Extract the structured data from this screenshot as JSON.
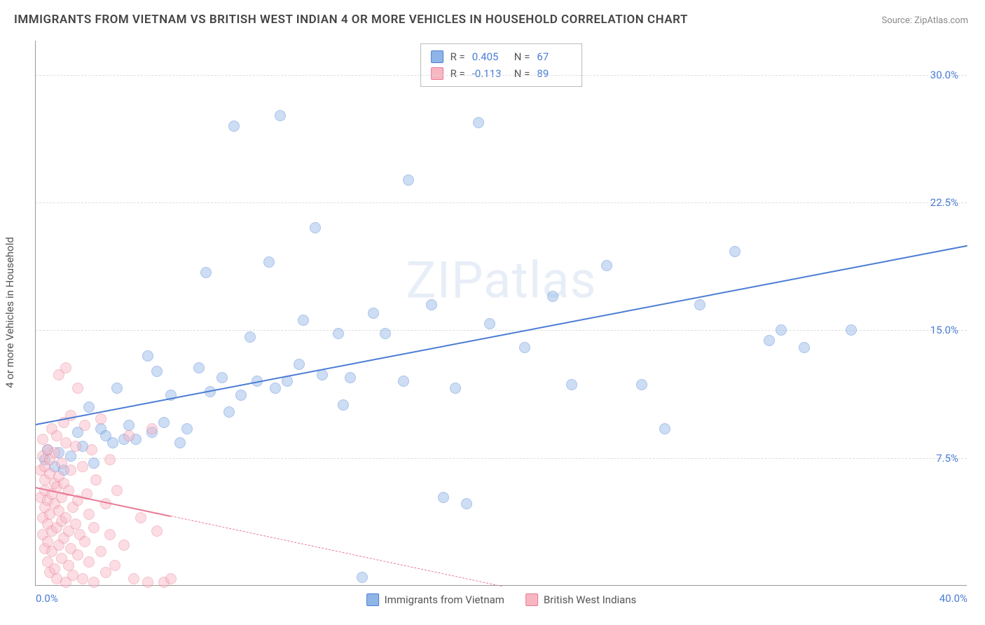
{
  "title": "IMMIGRANTS FROM VIETNAM VS BRITISH WEST INDIAN 4 OR MORE VEHICLES IN HOUSEHOLD CORRELATION CHART",
  "source": "Source: ZipAtlas.com",
  "watermark": "ZIPatlas",
  "y_axis_title": "4 or more Vehicles in Household",
  "chart": {
    "type": "scatter",
    "xlim": [
      0,
      40
    ],
    "ylim": [
      0,
      32
    ],
    "x_ticks": [
      {
        "v": 0,
        "label": "0.0%"
      },
      {
        "v": 40,
        "label": "40.0%"
      }
    ],
    "y_ticks": [
      {
        "v": 7.5,
        "label": "7.5%"
      },
      {
        "v": 15.0,
        "label": "15.0%"
      },
      {
        "v": 22.5,
        "label": "22.5%"
      },
      {
        "v": 30.0,
        "label": "30.0%"
      }
    ],
    "background_color": "#ffffff",
    "grid_color": "#dddddd",
    "marker_radius": 8,
    "marker_opacity": 0.45,
    "series": [
      {
        "key": "vietnam",
        "label": "Immigrants from Vietnam",
        "color_fill": "#8fb5e8",
        "color_stroke": "#4a7cd4",
        "r_value": "0.405",
        "n_value": "67",
        "trend": {
          "x1": 0,
          "y1": 9.5,
          "x2": 40,
          "y2": 20.0,
          "solid_until_x": 40,
          "width": 2.5
        },
        "points": [
          [
            0.4,
            7.4
          ],
          [
            0.5,
            8.0
          ],
          [
            0.8,
            7.0
          ],
          [
            1.0,
            7.8
          ],
          [
            1.2,
            6.8
          ],
          [
            1.5,
            7.6
          ],
          [
            1.8,
            9.0
          ],
          [
            2.0,
            8.2
          ],
          [
            2.3,
            10.5
          ],
          [
            2.5,
            7.2
          ],
          [
            2.8,
            9.2
          ],
          [
            3.0,
            8.8
          ],
          [
            3.3,
            8.4
          ],
          [
            3.5,
            11.6
          ],
          [
            3.8,
            8.6
          ],
          [
            4.0,
            9.4
          ],
          [
            4.3,
            8.6
          ],
          [
            4.8,
            13.5
          ],
          [
            5.0,
            9.0
          ],
          [
            5.2,
            12.6
          ],
          [
            5.5,
            9.6
          ],
          [
            5.8,
            11.2
          ],
          [
            6.2,
            8.4
          ],
          [
            6.5,
            9.2
          ],
          [
            7.0,
            12.8
          ],
          [
            7.3,
            18.4
          ],
          [
            7.5,
            11.4
          ],
          [
            8.0,
            12.2
          ],
          [
            8.3,
            10.2
          ],
          [
            8.5,
            27.0
          ],
          [
            8.8,
            11.2
          ],
          [
            9.2,
            14.6
          ],
          [
            9.5,
            12.0
          ],
          [
            10.0,
            19.0
          ],
          [
            10.3,
            11.6
          ],
          [
            10.5,
            27.6
          ],
          [
            10.8,
            12.0
          ],
          [
            11.3,
            13.0
          ],
          [
            11.5,
            15.6
          ],
          [
            12.0,
            21.0
          ],
          [
            12.3,
            12.4
          ],
          [
            13.0,
            14.8
          ],
          [
            13.2,
            10.6
          ],
          [
            13.5,
            12.2
          ],
          [
            14.0,
            0.5
          ],
          [
            14.5,
            16.0
          ],
          [
            15.0,
            14.8
          ],
          [
            15.8,
            12.0
          ],
          [
            16.0,
            23.8
          ],
          [
            17.0,
            16.5
          ],
          [
            17.5,
            5.2
          ],
          [
            18.0,
            11.6
          ],
          [
            18.5,
            4.8
          ],
          [
            19.0,
            27.2
          ],
          [
            19.5,
            15.4
          ],
          [
            21.0,
            14.0
          ],
          [
            22.2,
            17.0
          ],
          [
            23.0,
            11.8
          ],
          [
            24.5,
            18.8
          ],
          [
            26.0,
            11.8
          ],
          [
            27.0,
            9.2
          ],
          [
            28.5,
            16.5
          ],
          [
            30.0,
            19.6
          ],
          [
            31.5,
            14.4
          ],
          [
            32.0,
            15.0
          ],
          [
            33.0,
            14.0
          ],
          [
            35.0,
            15.0
          ]
        ]
      },
      {
        "key": "bwi",
        "label": "British West Indians",
        "color_fill": "#f7b6c2",
        "color_stroke": "#e87a94",
        "r_value": "-0.113",
        "n_value": "89",
        "trend": {
          "x1": 0,
          "y1": 5.8,
          "x2": 20,
          "y2": 0,
          "solid_until_x": 5.8,
          "width": 2
        },
        "points": [
          [
            0.2,
            5.2
          ],
          [
            0.2,
            6.8
          ],
          [
            0.3,
            4.0
          ],
          [
            0.3,
            7.6
          ],
          [
            0.3,
            3.0
          ],
          [
            0.3,
            8.6
          ],
          [
            0.4,
            2.2
          ],
          [
            0.4,
            5.6
          ],
          [
            0.4,
            7.0
          ],
          [
            0.4,
            4.6
          ],
          [
            0.4,
            6.2
          ],
          [
            0.5,
            1.4
          ],
          [
            0.5,
            3.6
          ],
          [
            0.5,
            5.0
          ],
          [
            0.5,
            8.0
          ],
          [
            0.5,
            2.6
          ],
          [
            0.6,
            6.6
          ],
          [
            0.6,
            4.2
          ],
          [
            0.6,
            7.4
          ],
          [
            0.6,
            0.8
          ],
          [
            0.7,
            3.2
          ],
          [
            0.7,
            5.4
          ],
          [
            0.7,
            9.2
          ],
          [
            0.7,
            2.0
          ],
          [
            0.8,
            6.0
          ],
          [
            0.8,
            4.8
          ],
          [
            0.8,
            1.0
          ],
          [
            0.8,
            7.8
          ],
          [
            0.9,
            3.4
          ],
          [
            0.9,
            5.8
          ],
          [
            0.9,
            8.8
          ],
          [
            0.9,
            0.4
          ],
          [
            1.0,
            2.4
          ],
          [
            1.0,
            6.4
          ],
          [
            1.0,
            4.4
          ],
          [
            1.0,
            12.4
          ],
          [
            1.1,
            3.8
          ],
          [
            1.1,
            7.2
          ],
          [
            1.1,
            1.6
          ],
          [
            1.1,
            5.2
          ],
          [
            1.2,
            9.6
          ],
          [
            1.2,
            2.8
          ],
          [
            1.2,
            6.0
          ],
          [
            1.3,
            4.0
          ],
          [
            1.3,
            0.2
          ],
          [
            1.3,
            8.4
          ],
          [
            1.3,
            12.8
          ],
          [
            1.4,
            1.2
          ],
          [
            1.4,
            5.6
          ],
          [
            1.4,
            3.2
          ],
          [
            1.5,
            10.0
          ],
          [
            1.5,
            6.8
          ],
          [
            1.5,
            2.2
          ],
          [
            1.6,
            4.6
          ],
          [
            1.6,
            0.6
          ],
          [
            1.7,
            8.2
          ],
          [
            1.7,
            3.6
          ],
          [
            1.8,
            1.8
          ],
          [
            1.8,
            11.6
          ],
          [
            1.8,
            5.0
          ],
          [
            1.9,
            3.0
          ],
          [
            2.0,
            7.0
          ],
          [
            2.0,
            0.4
          ],
          [
            2.1,
            9.4
          ],
          [
            2.1,
            2.6
          ],
          [
            2.2,
            5.4
          ],
          [
            2.3,
            1.4
          ],
          [
            2.3,
            4.2
          ],
          [
            2.4,
            8.0
          ],
          [
            2.5,
            0.2
          ],
          [
            2.5,
            3.4
          ],
          [
            2.6,
            6.2
          ],
          [
            2.8,
            2.0
          ],
          [
            2.8,
            9.8
          ],
          [
            3.0,
            4.8
          ],
          [
            3.0,
            0.8
          ],
          [
            3.2,
            3.0
          ],
          [
            3.2,
            7.4
          ],
          [
            3.4,
            1.2
          ],
          [
            3.5,
            5.6
          ],
          [
            3.8,
            2.4
          ],
          [
            4.0,
            8.8
          ],
          [
            4.2,
            0.4
          ],
          [
            4.5,
            4.0
          ],
          [
            4.8,
            0.2
          ],
          [
            5.0,
            9.2
          ],
          [
            5.2,
            3.2
          ],
          [
            5.5,
            0.2
          ],
          [
            5.8,
            0.4
          ]
        ]
      }
    ]
  },
  "legend_stats": {
    "r_label": "R =",
    "n_label": "N ="
  }
}
